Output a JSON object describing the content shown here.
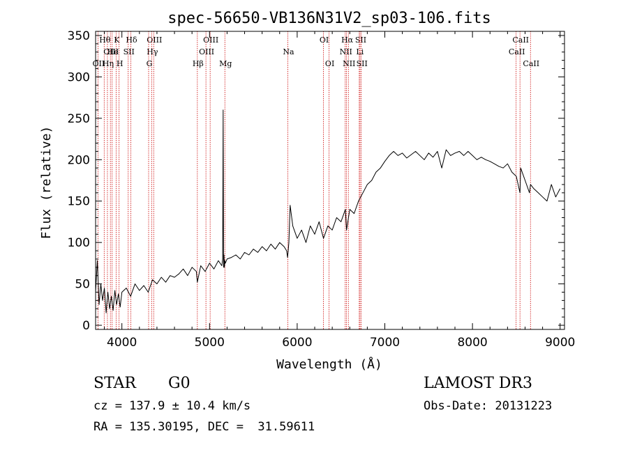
{
  "chart_data": {
    "type": "line",
    "title": "spec-56650-VB136N31V2_sp03-106.fits",
    "xlabel": "Wavelength (Å)",
    "ylabel": "Flux (relative)",
    "xlim": [
      3700,
      9050
    ],
    "ylim": [
      -5,
      355
    ],
    "xticks": [
      4000,
      5000,
      6000,
      7000,
      8000,
      9000
    ],
    "yticks": [
      0,
      50,
      100,
      150,
      200,
      250,
      300,
      350
    ],
    "grid": false,
    "series": [
      {
        "name": "flux",
        "color": "#000000",
        "x": [
          3700,
          3720,
          3740,
          3760,
          3780,
          3800,
          3820,
          3840,
          3860,
          3880,
          3900,
          3920,
          3940,
          3960,
          3980,
          4000,
          4050,
          4100,
          4150,
          4200,
          4250,
          4300,
          4350,
          4400,
          4450,
          4500,
          4550,
          4600,
          4650,
          4700,
          4750,
          4800,
          4850,
          4861,
          4900,
          4950,
          5000,
          5050,
          5100,
          5140,
          5150,
          5155,
          5160,
          5165,
          5170,
          5175,
          5180,
          5200,
          5250,
          5300,
          5350,
          5400,
          5450,
          5500,
          5550,
          5600,
          5650,
          5700,
          5750,
          5800,
          5850,
          5880,
          5890,
          5896,
          5905,
          5920,
          5950,
          6000,
          6050,
          6100,
          6150,
          6200,
          6250,
          6300,
          6350,
          6400,
          6450,
          6500,
          6550,
          6563,
          6600,
          6650,
          6700,
          6750,
          6800,
          6850,
          6900,
          6950,
          7000,
          7050,
          7100,
          7150,
          7200,
          7250,
          7300,
          7350,
          7400,
          7450,
          7500,
          7550,
          7600,
          7650,
          7700,
          7750,
          7800,
          7850,
          7900,
          7950,
          8000,
          8050,
          8100,
          8150,
          8200,
          8250,
          8300,
          8350,
          8400,
          8450,
          8500,
          8542,
          8550,
          8600,
          8650,
          8662,
          8700,
          8750,
          8800,
          8850,
          8900,
          8950,
          9000
        ],
        "values": [
          40,
          78,
          25,
          50,
          30,
          45,
          15,
          40,
          20,
          35,
          18,
          42,
          25,
          38,
          22,
          40,
          45,
          35,
          50,
          42,
          48,
          40,
          55,
          50,
          58,
          52,
          60,
          58,
          62,
          68,
          60,
          70,
          65,
          52,
          72,
          65,
          75,
          68,
          78,
          72,
          80,
          260,
          70,
          85,
          70,
          78,
          75,
          80,
          82,
          85,
          80,
          88,
          85,
          92,
          88,
          95,
          90,
          98,
          92,
          100,
          95,
          90,
          82,
          88,
          100,
          145,
          120,
          105,
          115,
          100,
          120,
          110,
          125,
          105,
          120,
          115,
          130,
          125,
          140,
          115,
          140,
          135,
          150,
          160,
          170,
          175,
          185,
          190,
          198,
          205,
          210,
          205,
          208,
          202,
          206,
          210,
          205,
          200,
          208,
          203,
          210,
          190,
          212,
          205,
          208,
          210,
          205,
          210,
          205,
          200,
          203,
          200,
          198,
          195,
          192,
          190,
          195,
          185,
          180,
          160,
          190,
          175,
          160,
          170,
          165,
          160,
          155,
          150,
          170,
          155,
          165
        ]
      }
    ],
    "line_markers": [
      {
        "label": "OII",
        "x": 3727,
        "row": 2
      },
      {
        "label": "Hθ",
        "x": 3798,
        "row": 0
      },
      {
        "label": "OIII",
        "x": 3869,
        "row": 1
      },
      {
        "label": "Hη",
        "x": 3835,
        "row": 2
      },
      {
        "label": "K",
        "x": 3934,
        "row": 0
      },
      {
        "label": "He",
        "x": 3889,
        "row": 1
      },
      {
        "label": "H",
        "x": 3968,
        "row": 2
      },
      {
        "label": "Hδ",
        "x": 4102,
        "row": 0
      },
      {
        "label": "SII",
        "x": 4072,
        "row": 1
      },
      {
        "label": "OIII",
        "x": 4363,
        "row": 0
      },
      {
        "label": "Hγ",
        "x": 4340,
        "row": 1
      },
      {
        "label": "G",
        "x": 4305,
        "row": 2
      },
      {
        "label": "OIII",
        "x": 5007,
        "row": 0
      },
      {
        "label": "OIII",
        "x": 4959,
        "row": 1
      },
      {
        "label": "Hβ",
        "x": 4861,
        "row": 2
      },
      {
        "label": "Mg",
        "x": 5175,
        "row": 2
      },
      {
        "label": "Na",
        "x": 5893,
        "row": 1
      },
      {
        "label": "OI",
        "x": 6300,
        "row": 0
      },
      {
        "label": "OI",
        "x": 6364,
        "row": 2
      },
      {
        "label": "Hα",
        "x": 6563,
        "row": 0
      },
      {
        "label": "NII",
        "x": 6548,
        "row": 1
      },
      {
        "label": "NII",
        "x": 6584,
        "row": 2
      },
      {
        "label": "SII",
        "x": 6717,
        "row": 0
      },
      {
        "label": "Li",
        "x": 6708,
        "row": 1
      },
      {
        "label": "SII",
        "x": 6731,
        "row": 2
      },
      {
        "label": "CaII",
        "x": 8542,
        "row": 0
      },
      {
        "label": "CaII",
        "x": 8498,
        "row": 1
      },
      {
        "label": "CaII",
        "x": 8662,
        "row": 2
      }
    ]
  },
  "footer": {
    "object_class": "STAR",
    "subclass": "G0",
    "survey": "LAMOST DR3",
    "redshift": "cz = 137.9 ± 10.4 km/s",
    "obs_date": "Obs-Date: 20131223",
    "coords": "RA = 135.30195, DEC =  31.59611"
  },
  "colors": {
    "line": "#000000",
    "marker": "#cc0000",
    "background": "#ffffff"
  }
}
